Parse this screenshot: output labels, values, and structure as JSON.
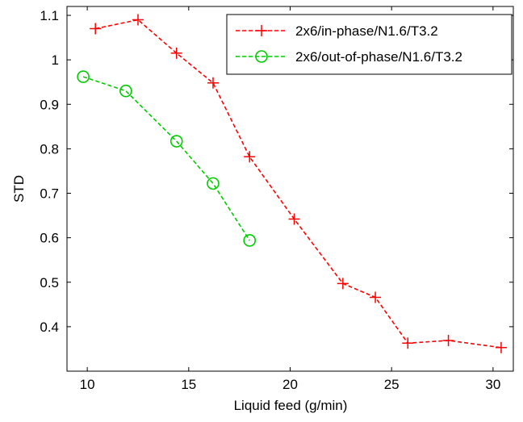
{
  "chart_data": {
    "type": "line",
    "xlabel": "Liquid feed (g/min)",
    "ylabel": "STD",
    "xlim": [
      9,
      31
    ],
    "ylim": [
      0.3,
      1.12
    ],
    "xticks": [
      10,
      15,
      20,
      25,
      30
    ],
    "xtick_labels": [
      "10",
      "15",
      "20",
      "25",
      "30"
    ],
    "yticks": [
      0.4,
      0.5,
      0.6,
      0.7,
      0.8,
      0.9,
      1.0,
      1.1
    ],
    "ytick_labels": [
      "0.4",
      "0.5",
      "0.6",
      "0.7",
      "0.8",
      "0.9",
      "1",
      "1.1"
    ],
    "grid": false,
    "legend_position": "top-right",
    "series": [
      {
        "name": "2x6/in-phase/N1.6/T3.2",
        "color": "#ff0000",
        "marker": "plus",
        "line_style": "dashed",
        "x": [
          10.4,
          12.5,
          14.4,
          16.2,
          18.0,
          20.2,
          22.6,
          24.2,
          25.8,
          27.8,
          30.4
        ],
        "y": [
          1.07,
          1.09,
          1.015,
          0.948,
          0.782,
          0.642,
          0.497,
          0.466,
          0.363,
          0.369,
          0.353
        ]
      },
      {
        "name": "2x6/out-of-phase/N1.6/T3.2",
        "color": "#00cc00",
        "marker": "circle",
        "line_style": "dashed",
        "x": [
          9.8,
          11.9,
          14.4,
          16.2,
          18.0
        ],
        "y": [
          0.962,
          0.93,
          0.817,
          0.722,
          0.594
        ]
      }
    ]
  }
}
